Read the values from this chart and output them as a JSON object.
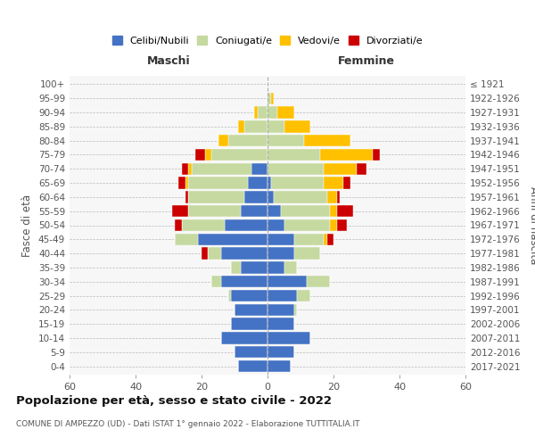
{
  "age_groups": [
    "0-4",
    "5-9",
    "10-14",
    "15-19",
    "20-24",
    "25-29",
    "30-34",
    "35-39",
    "40-44",
    "45-49",
    "50-54",
    "55-59",
    "60-64",
    "65-69",
    "70-74",
    "75-79",
    "80-84",
    "85-89",
    "90-94",
    "95-99",
    "100+"
  ],
  "birth_years": [
    "2017-2021",
    "2012-2016",
    "2007-2011",
    "2002-2006",
    "1997-2001",
    "1992-1996",
    "1987-1991",
    "1982-1986",
    "1977-1981",
    "1972-1976",
    "1967-1971",
    "1962-1966",
    "1957-1961",
    "1952-1956",
    "1947-1951",
    "1942-1946",
    "1937-1941",
    "1932-1936",
    "1927-1931",
    "1922-1926",
    "≤ 1921"
  ],
  "male": {
    "celibi": [
      9,
      10,
      14,
      11,
      10,
      11,
      14,
      8,
      14,
      21,
      13,
      8,
      7,
      6,
      5,
      0,
      0,
      0,
      0,
      0,
      0
    ],
    "coniugati": [
      0,
      0,
      0,
      0,
      0,
      1,
      3,
      3,
      4,
      7,
      13,
      16,
      17,
      18,
      18,
      17,
      12,
      7,
      3,
      0,
      0
    ],
    "vedovi": [
      0,
      0,
      0,
      0,
      0,
      0,
      0,
      0,
      0,
      0,
      0,
      0,
      0,
      1,
      1,
      2,
      3,
      2,
      1,
      0,
      0
    ],
    "divorziati": [
      0,
      0,
      0,
      0,
      0,
      0,
      0,
      0,
      2,
      0,
      2,
      5,
      1,
      2,
      2,
      3,
      0,
      0,
      0,
      0,
      0
    ]
  },
  "female": {
    "nubili": [
      7,
      8,
      13,
      8,
      8,
      9,
      12,
      5,
      8,
      8,
      5,
      4,
      2,
      1,
      0,
      0,
      0,
      0,
      0,
      0,
      0
    ],
    "coniugate": [
      0,
      0,
      0,
      0,
      1,
      4,
      7,
      4,
      8,
      9,
      14,
      15,
      16,
      16,
      17,
      16,
      11,
      5,
      3,
      1,
      0
    ],
    "vedove": [
      0,
      0,
      0,
      0,
      0,
      0,
      0,
      0,
      0,
      1,
      2,
      2,
      3,
      6,
      10,
      16,
      14,
      8,
      5,
      1,
      0
    ],
    "divorziate": [
      0,
      0,
      0,
      0,
      0,
      0,
      0,
      0,
      0,
      2,
      3,
      5,
      1,
      2,
      3,
      2,
      0,
      0,
      0,
      0,
      0
    ]
  },
  "colors": {
    "celibi": "#4472c4",
    "coniugati": "#c5d9a0",
    "vedovi": "#ffc000",
    "divorziati": "#cc0000"
  },
  "title_main": "Popolazione per età, sesso e stato civile - 2022",
  "title_sub": "COMUNE DI AMPEZZO (UD) - Dati ISTAT 1° gennaio 2022 - Elaborazione TUTTITALIA.IT",
  "xlim": 60,
  "xlabel_left": "Maschi",
  "xlabel_right": "Femmine",
  "ylabel_left": "Fasce di età",
  "ylabel_right": "Anni di nascita",
  "legend_labels": [
    "Celibi/Nubili",
    "Coniugati/e",
    "Vedovi/e",
    "Divorziati/e"
  ],
  "background_color": "#ffffff",
  "plot_bg": "#f7f7f7",
  "bar_height": 0.85
}
